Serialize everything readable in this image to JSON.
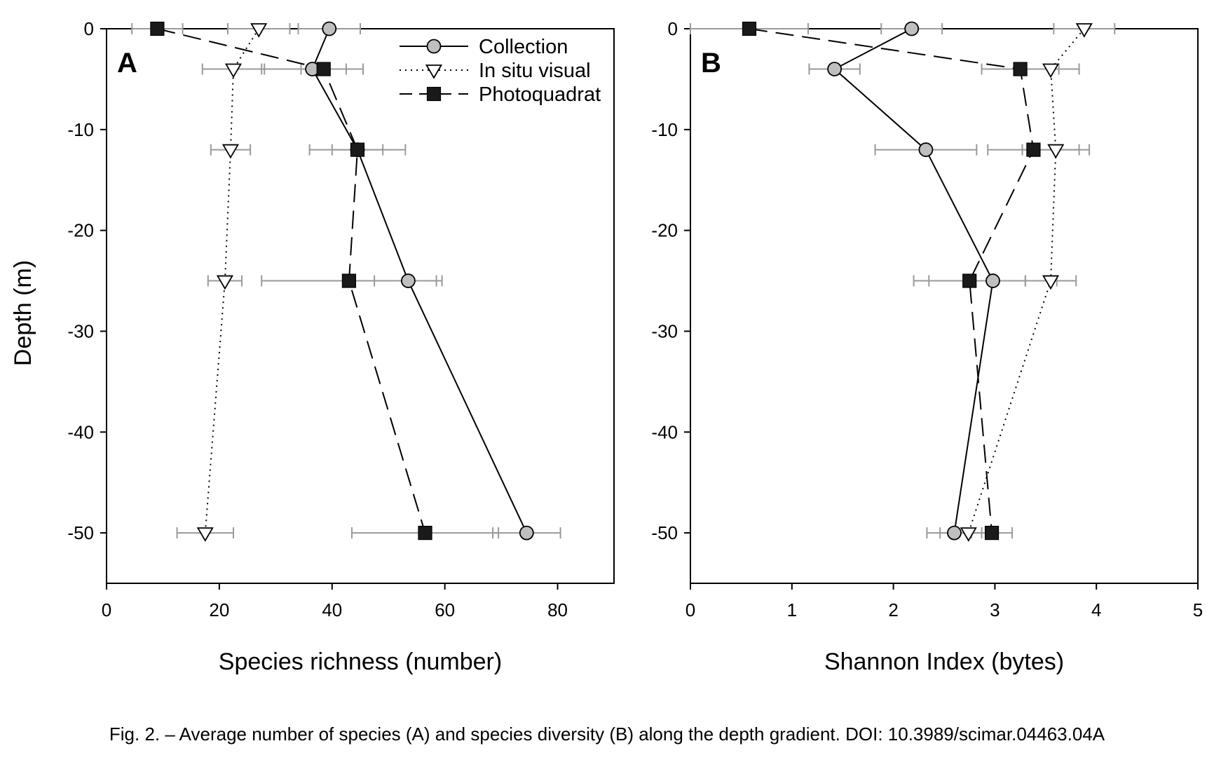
{
  "caption": "Fig. 2. – Average number of species (A) and species diversity (B) along the depth gradient. DOI: 10.3989/scimar.04463.04A",
  "colors": {
    "collection_fill": "#bfbfbf",
    "photoquadrat_fill": "#1a1a1a",
    "error_bar": "#9a9a9a",
    "axis": "#000000"
  },
  "chart_data": [
    {
      "type": "line",
      "panel_label": "A",
      "xlabel": "Species richness (number)",
      "ylabel": "Depth (m)",
      "xlim": [
        0,
        90
      ],
      "ylim": [
        -55,
        0
      ],
      "xticks": [
        0,
        20,
        40,
        60,
        80
      ],
      "yticks": [
        0,
        -10,
        -20,
        -30,
        -40,
        -50
      ],
      "legend": {
        "placement": "top-right"
      },
      "series": [
        {
          "name": "Collection",
          "marker": "circle",
          "line": "solid",
          "points": [
            {
              "depth": 0,
              "value": 39.5,
              "err": 5.5
            },
            {
              "depth": -4,
              "value": 36.5,
              "err": 9
            },
            {
              "depth": -12,
              "value": 44.5,
              "err": 8.5
            },
            {
              "depth": -25,
              "value": 53.5,
              "err": 6
            },
            {
              "depth": -50,
              "value": 74.5,
              "err": 6
            }
          ]
        },
        {
          "name": "In situ visual",
          "marker": "triangle-down",
          "line": "dotted",
          "points": [
            {
              "depth": 0,
              "value": 27,
              "err": 5.5
            },
            {
              "depth": -4,
              "value": 22.5,
              "err": 5.5
            },
            {
              "depth": -12,
              "value": 22,
              "err": 3.5
            },
            {
              "depth": -25,
              "value": 21,
              "err": 3
            },
            {
              "depth": -50,
              "value": 17.5,
              "err": 5
            }
          ]
        },
        {
          "name": "Photoquadrat",
          "marker": "square",
          "line": "dashed",
          "points": [
            {
              "depth": 0,
              "value": 9,
              "err": 4.5
            },
            {
              "depth": -4,
              "value": 38.5,
              "err": 4
            },
            {
              "depth": -12,
              "value": 44.5,
              "err": 4.5
            },
            {
              "depth": -25,
              "value": 43,
              "err": 15.5
            },
            {
              "depth": -50,
              "value": 56.5,
              "err": 13
            }
          ]
        }
      ]
    },
    {
      "type": "line",
      "panel_label": "B",
      "xlabel": "Shannon Index (bytes)",
      "ylabel": "",
      "xlim": [
        0,
        5
      ],
      "ylim": [
        -55,
        0
      ],
      "xticks": [
        0,
        1,
        2,
        3,
        4,
        5
      ],
      "yticks": [
        0,
        -10,
        -20,
        -30,
        -40,
        -50
      ],
      "series": [
        {
          "name": "Collection",
          "marker": "circle",
          "line": "solid",
          "points": [
            {
              "depth": 0,
              "value": 2.18,
              "err": 0.3
            },
            {
              "depth": -4,
              "value": 1.42,
              "err": 0.25
            },
            {
              "depth": -12,
              "value": 2.32,
              "err": 0.5
            },
            {
              "depth": -25,
              "value": 2.98,
              "err": 0.63
            },
            {
              "depth": -50,
              "value": 2.6,
              "err": 0.27
            }
          ]
        },
        {
          "name": "In situ visual",
          "marker": "triangle-down",
          "line": "dotted",
          "points": [
            {
              "depth": 0,
              "value": 3.88,
              "err": 0.3
            },
            {
              "depth": -4,
              "value": 3.55,
              "err": 0.28
            },
            {
              "depth": -12,
              "value": 3.6,
              "err": 0.33
            },
            {
              "depth": -25,
              "value": 3.55,
              "err": 0.25
            },
            {
              "depth": -50,
              "value": 2.74,
              "err": 0.28
            }
          ]
        },
        {
          "name": "Photoquadrat",
          "marker": "square",
          "line": "dashed",
          "points": [
            {
              "depth": 0,
              "value": 0.58,
              "err": 0.58
            },
            {
              "depth": -4,
              "value": 3.25,
              "err": 0.38
            },
            {
              "depth": -12,
              "value": 3.38,
              "err": 0.45
            },
            {
              "depth": -25,
              "value": 2.75,
              "err": 0.55
            },
            {
              "depth": -50,
              "value": 2.97,
              "err": 0.2
            }
          ]
        }
      ]
    }
  ]
}
